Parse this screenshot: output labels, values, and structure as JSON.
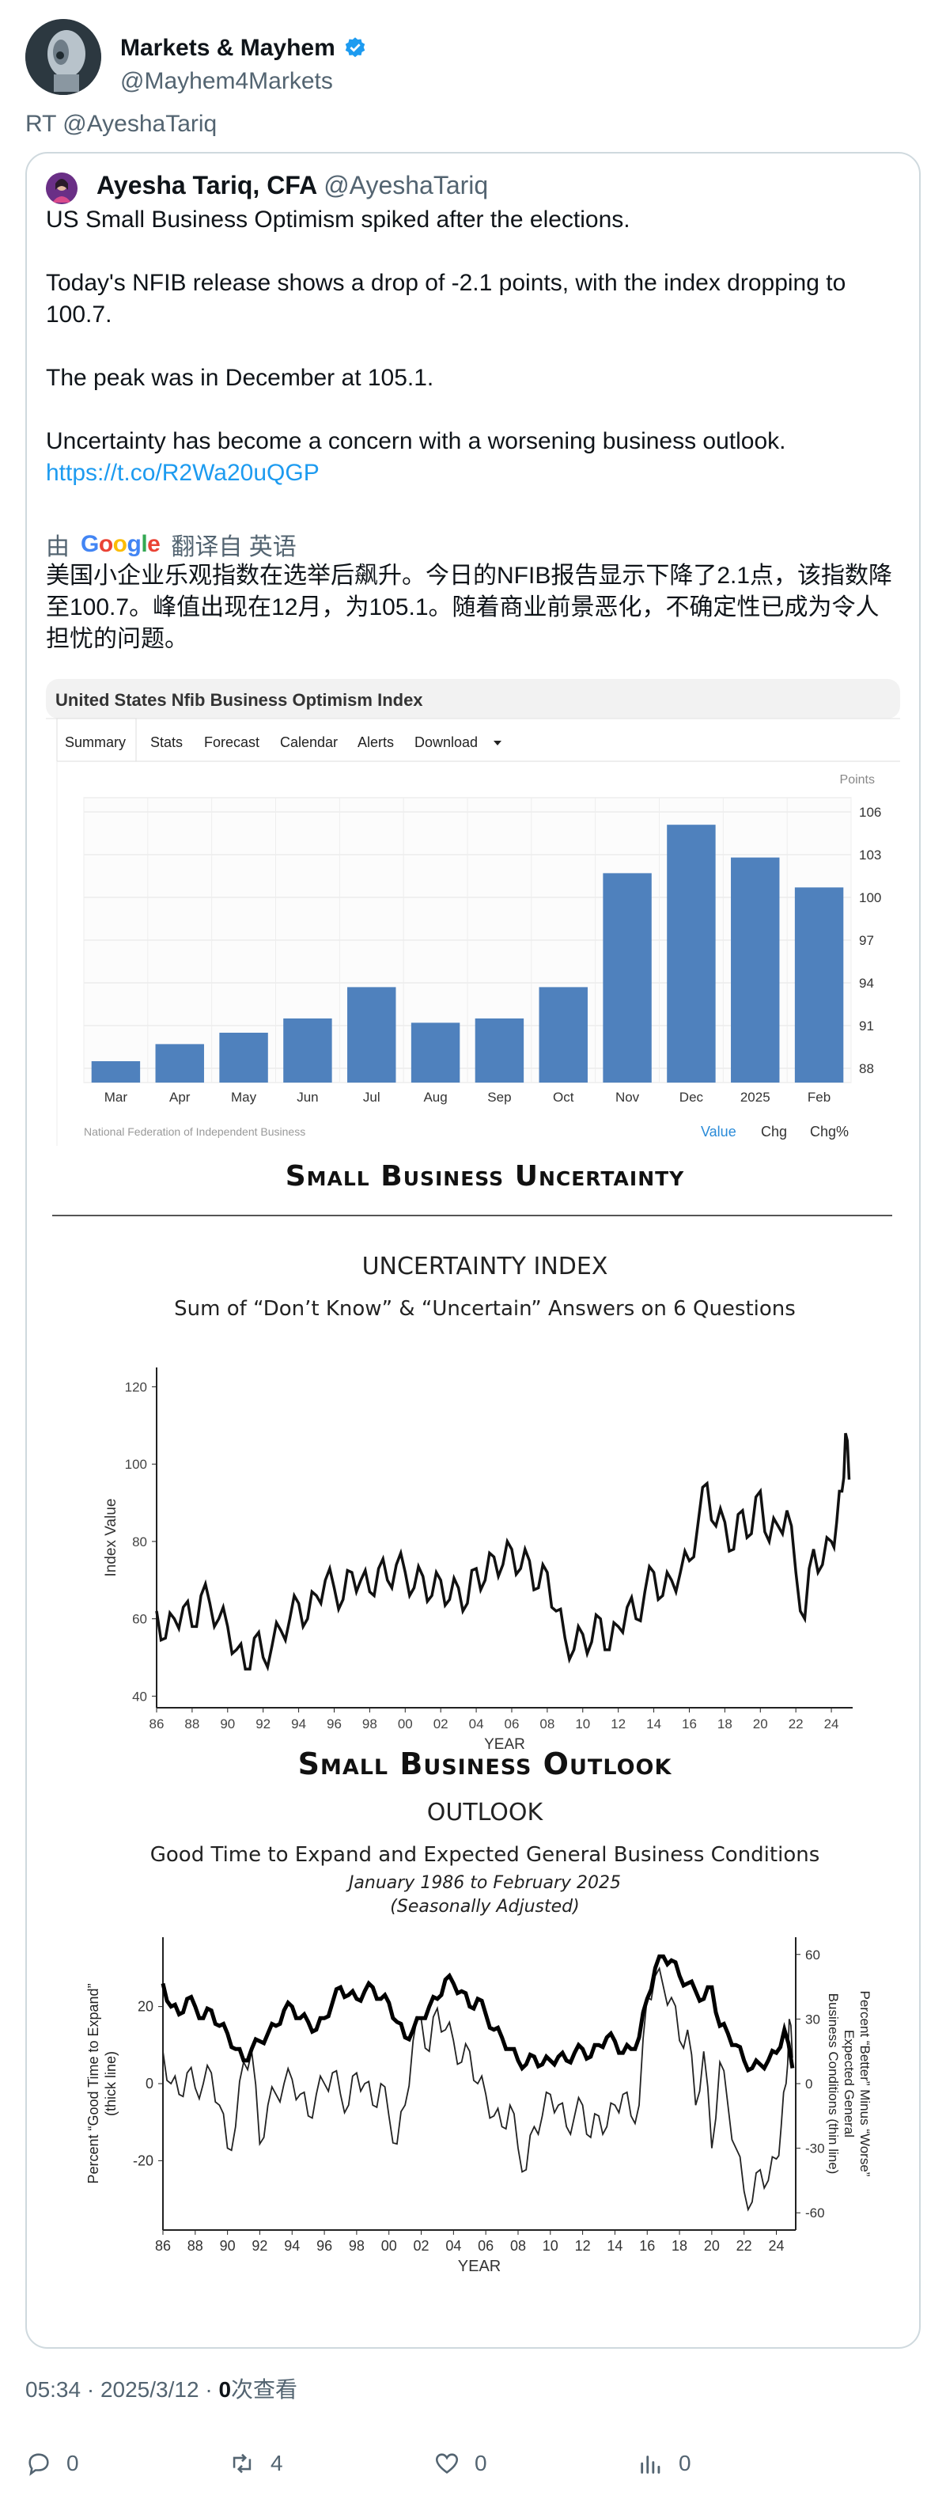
{
  "author": {
    "name": "Markets & Mayhem",
    "handle": "@Mayhem4Markets",
    "verified_color": "#1d9bf0"
  },
  "retweet_label": "RT @AyeshaTariq",
  "quoted": {
    "name": "Ayesha Tariq, CFA",
    "handle": "@AyeshaTariq",
    "lines": [
      "US Small Business Optimism spiked after the elections.",
      "Today's NFIB release shows a drop of -2.1 points, with the index dropping to 100.7.",
      "The peak was in December at 105.1.",
      "Uncertainty has become a concern with a worsening business outlook."
    ],
    "link": "https://t.co/R2Wa20uQGP",
    "translated_by_prefix": "由",
    "translated_by_brand": "Google",
    "translated_by_suffix": "翻译自 英语",
    "translation": "美国小企业乐观指数在选举后飙升。今日的NFIB报告显示下降了2.1点，该指数降至100.7。峰值出现在12月，为105.1。随着商业前景恶化，不确定性已成为令人担忧的问题。"
  },
  "nfib_chart": {
    "title": "United States Nfib Business Optimism Index",
    "tabs": [
      "Summary",
      "Stats",
      "Forecast",
      "Calendar",
      "Alerts",
      "Download"
    ],
    "units": "Points",
    "source": "National Federation of Independent Business",
    "footer_tabs": [
      "Value",
      "Chg",
      "Chg%"
    ],
    "bar_color": "#4f81bd"
  },
  "uncertainty_section": {
    "heading": "Small Business Uncertainty",
    "title": "UNCERTAINTY INDEX",
    "subtitle": "Sum of “Don’t Know” & “Uncertain” Answers on 6 Questions"
  },
  "outlook_section": {
    "heading": "Small Business Outlook",
    "title": "OUTLOOK",
    "subtitle": "Good Time to Expand and Expected General Business Conditions",
    "period": "January 1986 to February 2025",
    "note": "(Seasonally Adjusted)"
  },
  "chart_data": [
    {
      "type": "bar",
      "title": "United States Nfib Business Optimism Index",
      "ylabel": "Points",
      "categories": [
        "Mar",
        "Apr",
        "May",
        "Jun",
        "Jul",
        "Aug",
        "Sep",
        "Oct",
        "Nov",
        "Dec",
        "2025",
        "Feb"
      ],
      "values": [
        88.5,
        89.7,
        90.5,
        91.5,
        93.7,
        91.2,
        91.5,
        93.7,
        101.7,
        105.1,
        102.8,
        100.7
      ],
      "yticks": [
        88,
        91,
        94,
        97,
        100,
        103,
        106
      ],
      "ylim": [
        87,
        107
      ],
      "grid": true
    },
    {
      "type": "line",
      "title": "UNCERTAINTY INDEX",
      "subtitle": "Sum of “Don’t Know” & “Uncertain” Answers on 6 Questions",
      "xlabel": "YEAR",
      "ylabel": "Index Value",
      "xticks": [
        "86",
        "88",
        "90",
        "92",
        "94",
        "96",
        "98",
        "00",
        "02",
        "04",
        "06",
        "08",
        "10",
        "12",
        "14",
        "16",
        "18",
        "20",
        "22",
        "24"
      ],
      "yticks": [
        40,
        60,
        80,
        100,
        120
      ],
      "ylim": [
        37,
        125
      ],
      "xlim": [
        1986,
        2025.2
      ],
      "x": [
        1986.0,
        1986.5,
        1987.0,
        1987.5,
        1988.0,
        1988.5,
        1989.0,
        1989.5,
        1990.0,
        1990.5,
        1991.0,
        1991.5,
        1992.0,
        1992.5,
        1993.0,
        1993.5,
        1994.0,
        1994.5,
        1995.0,
        1995.5,
        1996.0,
        1996.5,
        1997.0,
        1997.5,
        1998.0,
        1998.5,
        1999.0,
        1999.5,
        2000.0,
        2000.5,
        2001.0,
        2001.5,
        2002.0,
        2002.5,
        2003.0,
        2003.5,
        2004.0,
        2004.5,
        2005.0,
        2005.5,
        2006.0,
        2006.5,
        2007.0,
        2007.5,
        2008.0,
        2008.5,
        2009.0,
        2009.5,
        2010.0,
        2010.5,
        2011.0,
        2011.5,
        2012.0,
        2012.5,
        2013.0,
        2013.5,
        2014.0,
        2014.5,
        2015.0,
        2015.5,
        2016.0,
        2016.5,
        2017.0,
        2017.5,
        2018.0,
        2018.5,
        2019.0,
        2019.5,
        2020.0,
        2020.5,
        2021.0,
        2021.5,
        2022.0,
        2022.5,
        2023.0,
        2023.5,
        2024.0,
        2024.3,
        2024.6,
        2024.8,
        2025.0
      ],
      "y": [
        62,
        55,
        60,
        63,
        58,
        66,
        64,
        60,
        58,
        52,
        47,
        55,
        50,
        53,
        57,
        60,
        64,
        60,
        66,
        70,
        68,
        65,
        72,
        70,
        67,
        73,
        70,
        74,
        72,
        68,
        71,
        66,
        70,
        65,
        68,
        64,
        73,
        70,
        76,
        74,
        78,
        73,
        75,
        68,
        72,
        62,
        55,
        52,
        56,
        54,
        60,
        52,
        58,
        63,
        60,
        67,
        72,
        66,
        70,
        72,
        75,
        85,
        95,
        84,
        85,
        78,
        88,
        82,
        93,
        80,
        84,
        88,
        72,
        60,
        78,
        74,
        80,
        85,
        93,
        108,
        96
      ],
      "grid": false
    },
    {
      "type": "line",
      "title": "OUTLOOK",
      "subtitle": "Good Time to Expand and Expected General Business Conditions",
      "xlabel": "YEAR",
      "ylabel": "Percent “Good Time to Expand” (thick line)",
      "y2label": "Percent “Better” Minus “Worse” Expected General Business Conditions (thin line)",
      "xticks": [
        "86",
        "88",
        "90",
        "92",
        "94",
        "96",
        "98",
        "00",
        "02",
        "04",
        "06",
        "08",
        "10",
        "12",
        "14",
        "16",
        "18",
        "20",
        "22",
        "24"
      ],
      "yticks": [
        -20,
        0,
        20
      ],
      "ylim": [
        -38,
        38
      ],
      "y2ticks": [
        -60,
        -30,
        0,
        30,
        60
      ],
      "y2lim": [
        -68,
        68
      ],
      "xlim": [
        1986,
        2025.2
      ],
      "series": [
        {
          "axis": "left",
          "x": [
            1986.0,
            1986.5,
            1987.0,
            1987.5,
            1988.0,
            1988.5,
            1989.0,
            1989.5,
            1990.0,
            1990.5,
            1991.0,
            1991.5,
            1992.0,
            1992.5,
            1993.0,
            1993.5,
            1994.0,
            1994.5,
            1995.0,
            1995.5,
            1996.0,
            1996.5,
            1997.0,
            1997.5,
            1998.0,
            1998.5,
            1999.0,
            1999.5,
            2000.0,
            2000.5,
            2001.0,
            2001.5,
            2002.0,
            2002.5,
            2003.0,
            2003.5,
            2004.0,
            2004.5,
            2005.0,
            2005.5,
            2006.0,
            2006.5,
            2007.0,
            2007.5,
            2008.0,
            2008.5,
            2009.0,
            2009.5,
            2010.0,
            2010.5,
            2011.0,
            2011.5,
            2012.0,
            2012.5,
            2013.0,
            2013.5,
            2014.0,
            2014.5,
            2015.0,
            2015.5,
            2016.0,
            2016.5,
            2017.0,
            2017.5,
            2018.0,
            2018.5,
            2019.0,
            2019.5,
            2020.0,
            2020.5,
            2021.0,
            2021.5,
            2022.0,
            2022.5,
            2023.0,
            2023.5,
            2024.0,
            2024.5,
            2025.0
          ],
          "y": [
            26,
            20,
            18,
            22,
            20,
            17,
            19,
            15,
            13,
            9,
            6,
            9,
            11,
            13,
            15,
            19,
            20,
            17,
            16,
            14,
            17,
            21,
            25,
            23,
            22,
            24,
            25,
            22,
            21,
            16,
            12,
            14,
            17,
            20,
            22,
            27,
            26,
            24,
            20,
            22,
            18,
            14,
            12,
            9,
            6,
            5,
            7,
            5,
            6,
            7,
            6,
            8,
            9,
            7,
            10,
            12,
            11,
            8,
            9,
            12,
            22,
            30,
            33,
            32,
            28,
            26,
            24,
            22,
            25,
            15,
            13,
            10,
            6,
            4,
            5,
            6,
            8,
            14,
            4
          ]
        },
        {
          "axis": "right",
          "x": [
            1986.0,
            1986.5,
            1987.0,
            1987.5,
            1988.0,
            1988.5,
            1989.0,
            1989.5,
            1990.0,
            1990.5,
            1991.0,
            1991.5,
            1992.0,
            1992.5,
            1993.0,
            1993.5,
            1994.0,
            1994.5,
            1995.0,
            1995.5,
            1996.0,
            1996.5,
            1997.0,
            1997.5,
            1998.0,
            1998.5,
            1999.0,
            1999.5,
            2000.0,
            2000.5,
            2001.0,
            2001.5,
            2002.0,
            2002.5,
            2003.0,
            2003.5,
            2004.0,
            2004.5,
            2005.0,
            2005.5,
            2006.0,
            2006.5,
            2007.0,
            2007.5,
            2008.0,
            2008.5,
            2009.0,
            2009.5,
            2010.0,
            2010.5,
            2011.0,
            2011.5,
            2012.0,
            2012.5,
            2013.0,
            2013.5,
            2014.0,
            2014.5,
            2015.0,
            2015.5,
            2016.0,
            2016.5,
            2017.0,
            2017.5,
            2018.0,
            2018.5,
            2019.0,
            2019.5,
            2020.0,
            2020.5,
            2021.0,
            2021.5,
            2022.0,
            2022.5,
            2023.0,
            2023.5,
            2024.0,
            2024.3,
            2024.6,
            2024.8,
            2025.0
          ],
          "y": [
            15,
            0,
            -5,
            5,
            -2,
            0,
            5,
            -10,
            -30,
            -20,
            10,
            15,
            -28,
            -10,
            -5,
            0,
            2,
            -5,
            -15,
            -5,
            0,
            5,
            -5,
            -10,
            5,
            0,
            -10,
            0,
            -15,
            -28,
            -10,
            20,
            30,
            15,
            35,
            25,
            20,
            10,
            15,
            0,
            -5,
            -15,
            -20,
            -10,
            -30,
            -40,
            -20,
            -15,
            -5,
            -10,
            -20,
            -15,
            -10,
            -25,
            -15,
            -20,
            -10,
            -5,
            -15,
            -10,
            40,
            50,
            45,
            40,
            20,
            25,
            -10,
            15,
            -30,
            10,
            -10,
            -30,
            -50,
            -55,
            -40,
            -45,
            -35,
            -20,
            0,
            30,
            12
          ]
        }
      ],
      "grid": false
    }
  ],
  "tweet_meta": {
    "time": "05:34",
    "date": "2025/3/12",
    "views_count": "0",
    "views_label": "次查看"
  },
  "actions": {
    "replies": "0",
    "retweets": "4",
    "likes": "0",
    "views": "0"
  }
}
